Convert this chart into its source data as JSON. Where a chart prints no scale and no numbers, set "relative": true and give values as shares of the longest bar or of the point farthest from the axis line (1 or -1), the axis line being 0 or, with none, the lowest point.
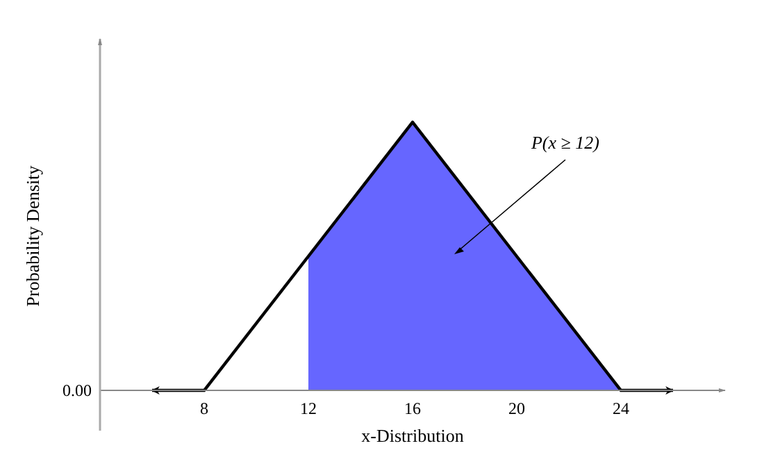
{
  "chart_data": {
    "type": "area",
    "relative": true,
    "xlabel": "x-Distribution",
    "ylabel": "Probability Density",
    "xlim": [
      4,
      28
    ],
    "xticks": [
      8,
      12,
      16,
      20,
      24
    ],
    "grid": false,
    "legend": false,
    "marker": "none",
    "line_style": "solid",
    "series": [
      {
        "color": "#6666ff",
        "x": [
          12,
          16,
          24
        ],
        "values": [
          0.5,
          1,
          0
        ]
      },
      {
        "type": "line",
        "color": "#000000",
        "x": [
          6,
          8,
          16,
          24,
          26
        ],
        "values": [
          0,
          0,
          1,
          0,
          0
        ]
      }
    ],
    "annotations": [
      "0.00",
      "P(x ≥ 12)"
    ]
  }
}
